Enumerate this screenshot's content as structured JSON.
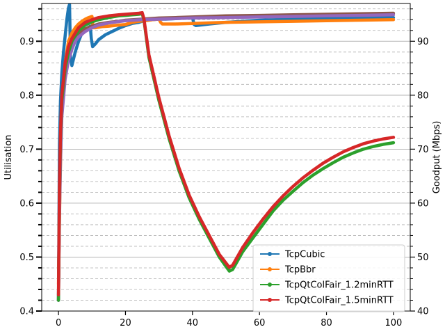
{
  "chart_data": {
    "type": "line",
    "title": "",
    "xlabel": "",
    "ylabel_left": "Utilisation",
    "ylabel_right": "Goodput (Mbps)",
    "xlim": [
      -5,
      105
    ],
    "ylim_left": [
      0.4,
      0.97
    ],
    "ylim_right": [
      40,
      97
    ],
    "x_ticks": [
      0,
      20,
      40,
      60,
      80,
      100
    ],
    "y_ticks_left": [
      0.4,
      0.5,
      0.6,
      0.7,
      0.8,
      0.9
    ],
    "y_ticks_right": [
      40,
      50,
      60,
      70,
      80,
      90
    ],
    "grid": true,
    "legend_position": "lower-right",
    "series": [
      {
        "name": "TcpCubic",
        "color": "#1f77b4",
        "x": [
          0,
          0.3,
          0.6,
          1.0,
          1.5,
          2.0,
          2.5,
          3.0,
          3.3,
          3.6,
          4.0,
          5,
          6,
          7,
          8,
          9,
          9.5,
          9.8,
          10.2,
          11,
          12,
          14,
          16,
          18,
          20,
          22,
          24,
          25,
          26,
          28,
          30,
          32,
          35,
          38,
          40,
          40.5,
          41,
          45,
          50,
          55,
          60,
          65,
          70,
          75,
          80,
          85,
          90,
          95,
          100
        ],
        "y": [
          0.42,
          0.71,
          0.79,
          0.84,
          0.88,
          0.91,
          0.94,
          0.962,
          0.968,
          0.87,
          0.855,
          0.88,
          0.9,
          0.915,
          0.922,
          0.926,
          0.928,
          0.905,
          0.89,
          0.895,
          0.903,
          0.912,
          0.918,
          0.924,
          0.929,
          0.933,
          0.935,
          0.937,
          0.939,
          0.94,
          0.941,
          0.941,
          0.942,
          0.943,
          0.944,
          0.931,
          0.929,
          0.932,
          0.935,
          0.937,
          0.939,
          0.94,
          0.941,
          0.942,
          0.942,
          0.943,
          0.943,
          0.944,
          0.944
        ]
      },
      {
        "name": "TcpBbr",
        "color": "#ff7f0e",
        "x": [
          0,
          0.3,
          0.6,
          1.0,
          2,
          3,
          4,
          5,
          6,
          7,
          8,
          9,
          10,
          10.3,
          11,
          13,
          15,
          18,
          20,
          21,
          22,
          24,
          26,
          28,
          30,
          30.5,
          31,
          35,
          40,
          45,
          50,
          60,
          70,
          80,
          90,
          100
        ],
        "y": [
          0.45,
          0.57,
          0.67,
          0.78,
          0.86,
          0.9,
          0.915,
          0.925,
          0.932,
          0.937,
          0.941,
          0.944,
          0.946,
          0.925,
          0.925,
          0.927,
          0.928,
          0.93,
          0.931,
          0.933,
          0.935,
          0.937,
          0.938,
          0.94,
          0.941,
          0.935,
          0.932,
          0.932,
          0.933,
          0.934,
          0.935,
          0.936,
          0.937,
          0.938,
          0.939,
          0.94
        ]
      },
      {
        "name": "TcpQtColFair_1.2minRTT",
        "color": "#2ca02c",
        "x": [
          0,
          0.3,
          0.6,
          1.0,
          2,
          3,
          4,
          5,
          6,
          7,
          8,
          10,
          12,
          15,
          18,
          20,
          22,
          24,
          25,
          25.5,
          27,
          30,
          33,
          36,
          39,
          42,
          45,
          48,
          51,
          52,
          55,
          58,
          61,
          64,
          67,
          70,
          73,
          76,
          79,
          82,
          85,
          88,
          91,
          94,
          97,
          100
        ],
        "y": [
          0.42,
          0.62,
          0.72,
          0.79,
          0.85,
          0.88,
          0.9,
          0.91,
          0.92,
          0.925,
          0.93,
          0.936,
          0.94,
          0.944,
          0.947,
          0.948,
          0.949,
          0.95,
          0.951,
          0.94,
          0.87,
          0.79,
          0.72,
          0.66,
          0.61,
          0.57,
          0.535,
          0.5,
          0.474,
          0.477,
          0.51,
          0.535,
          0.56,
          0.585,
          0.605,
          0.622,
          0.638,
          0.652,
          0.664,
          0.675,
          0.685,
          0.693,
          0.7,
          0.705,
          0.709,
          0.712
        ]
      },
      {
        "name": "TcpQtColFair_1.5minRTT",
        "color": "#d62728",
        "x": [
          0,
          0.3,
          0.6,
          1.0,
          2,
          3,
          4,
          5,
          6,
          7,
          8,
          10,
          12,
          15,
          18,
          20,
          22,
          24,
          25,
          25.5,
          27,
          30,
          33,
          36,
          39,
          42,
          45,
          48,
          51,
          52,
          55,
          58,
          61,
          64,
          67,
          70,
          73,
          76,
          79,
          82,
          85,
          88,
          91,
          94,
          97,
          100
        ],
        "y": [
          0.43,
          0.63,
          0.73,
          0.8,
          0.86,
          0.89,
          0.905,
          0.915,
          0.925,
          0.93,
          0.935,
          0.94,
          0.944,
          0.947,
          0.949,
          0.95,
          0.951,
          0.952,
          0.953,
          0.942,
          0.875,
          0.795,
          0.725,
          0.665,
          0.615,
          0.575,
          0.54,
          0.505,
          0.481,
          0.485,
          0.518,
          0.545,
          0.57,
          0.593,
          0.613,
          0.631,
          0.647,
          0.661,
          0.674,
          0.685,
          0.695,
          0.703,
          0.71,
          0.715,
          0.719,
          0.722
        ]
      },
      {
        "name": "",
        "color": "#8c564b",
        "x": [
          0,
          0.3,
          0.6,
          1.0,
          2,
          3,
          4,
          5,
          6,
          7,
          8,
          10,
          12,
          15,
          18,
          20,
          25,
          30,
          35,
          40,
          50,
          60,
          70,
          80,
          90,
          100
        ],
        "y": [
          0.42,
          0.6,
          0.7,
          0.77,
          0.84,
          0.875,
          0.895,
          0.905,
          0.913,
          0.918,
          0.923,
          0.928,
          0.932,
          0.935,
          0.937,
          0.939,
          0.941,
          0.943,
          0.944,
          0.945,
          0.947,
          0.948,
          0.949,
          0.95,
          0.951,
          0.952
        ]
      },
      {
        "name": "",
        "color": "#9467bd",
        "x": [
          0,
          0.3,
          0.6,
          1.0,
          2,
          3,
          4,
          5,
          6,
          8,
          10,
          12,
          15,
          20,
          25,
          30,
          40,
          50,
          60,
          70,
          80,
          90,
          100
        ],
        "y": [
          0.42,
          0.58,
          0.68,
          0.76,
          0.83,
          0.865,
          0.885,
          0.9,
          0.908,
          0.918,
          0.925,
          0.93,
          0.934,
          0.938,
          0.94,
          0.941,
          0.943,
          0.944,
          0.945,
          0.946,
          0.947,
          0.948,
          0.949
        ]
      }
    ],
    "legend": [
      {
        "label": "TcpCubic",
        "color": "#1f77b4"
      },
      {
        "label": "TcpBbr",
        "color": "#ff7f0e"
      },
      {
        "label": "TcpQtColFair_1.2minRTT",
        "color": "#2ca02c"
      },
      {
        "label": "TcpQtColFair_1.5minRTT",
        "color": "#d62728"
      }
    ]
  }
}
